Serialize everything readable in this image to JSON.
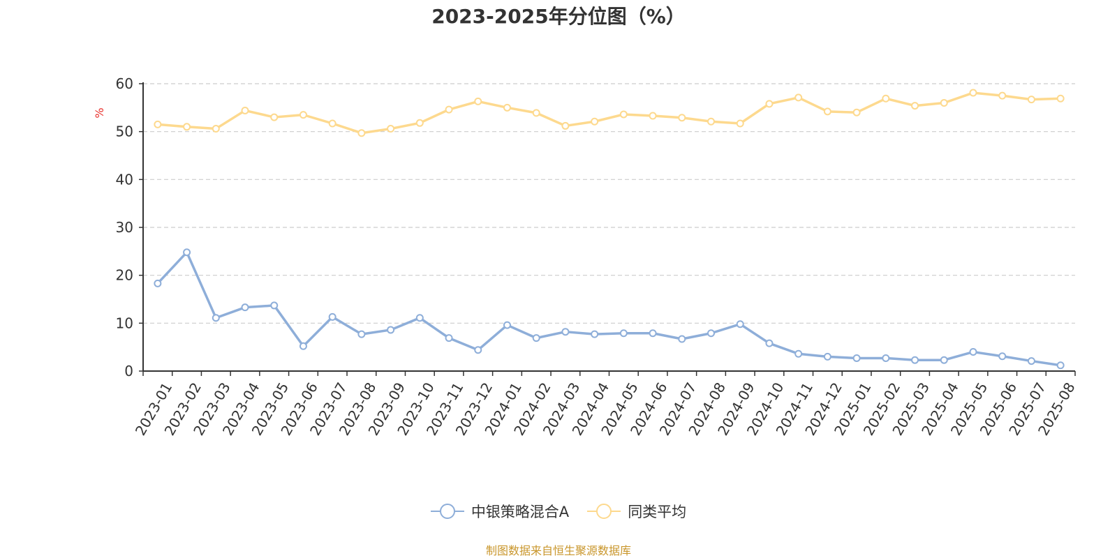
{
  "chart_data": {
    "type": "line",
    "title": "2023-2025年分位图（%）",
    "ylabel": "%",
    "xlabel": "",
    "ylim": [
      0,
      60
    ],
    "yticks": [
      0,
      10,
      20,
      30,
      40,
      50,
      60
    ],
    "grid": true,
    "legend_position": "bottom-center",
    "categories": [
      "2023-01",
      "2023-02",
      "2023-03",
      "2023-04",
      "2023-05",
      "2023-06",
      "2023-07",
      "2023-08",
      "2023-09",
      "2023-10",
      "2023-11",
      "2023-12",
      "2024-01",
      "2024-02",
      "2024-03",
      "2024-04",
      "2024-05",
      "2024-06",
      "2024-07",
      "2024-08",
      "2024-09",
      "2024-10",
      "2024-11",
      "2024-12",
      "2025-01",
      "2025-02",
      "2025-03",
      "2025-04",
      "2025-05",
      "2025-06",
      "2025-07",
      "2025-08"
    ],
    "series": [
      {
        "name": "中银策略混合A",
        "color": "#8eaed9",
        "values": [
          18.3,
          24.8,
          11.1,
          13.3,
          13.7,
          5.2,
          11.3,
          7.7,
          8.6,
          11.1,
          6.9,
          4.4,
          9.6,
          6.9,
          8.2,
          7.7,
          7.9,
          7.9,
          6.7,
          7.9,
          9.8,
          5.8,
          3.6,
          3.0,
          2.7,
          2.7,
          2.3,
          2.3,
          4.0,
          3.1,
          2.1,
          1.2
        ]
      },
      {
        "name": "同类平均",
        "color": "#fdd98e",
        "values": [
          51.5,
          51.0,
          50.6,
          54.4,
          53.0,
          53.5,
          51.7,
          49.7,
          50.6,
          51.8,
          54.6,
          56.3,
          55.0,
          53.9,
          51.2,
          52.1,
          53.6,
          53.3,
          52.9,
          52.1,
          51.7,
          55.8,
          57.1,
          54.2,
          54.0,
          56.9,
          55.4,
          56.0,
          58.1,
          57.5,
          56.7,
          56.9
        ]
      }
    ]
  },
  "colors": {
    "axis": "#333333",
    "grid": "#cccccc",
    "ylabel": "#e8302c",
    "source": "#c9962b"
  },
  "source_text": "制图数据来自恒生聚源数据库"
}
